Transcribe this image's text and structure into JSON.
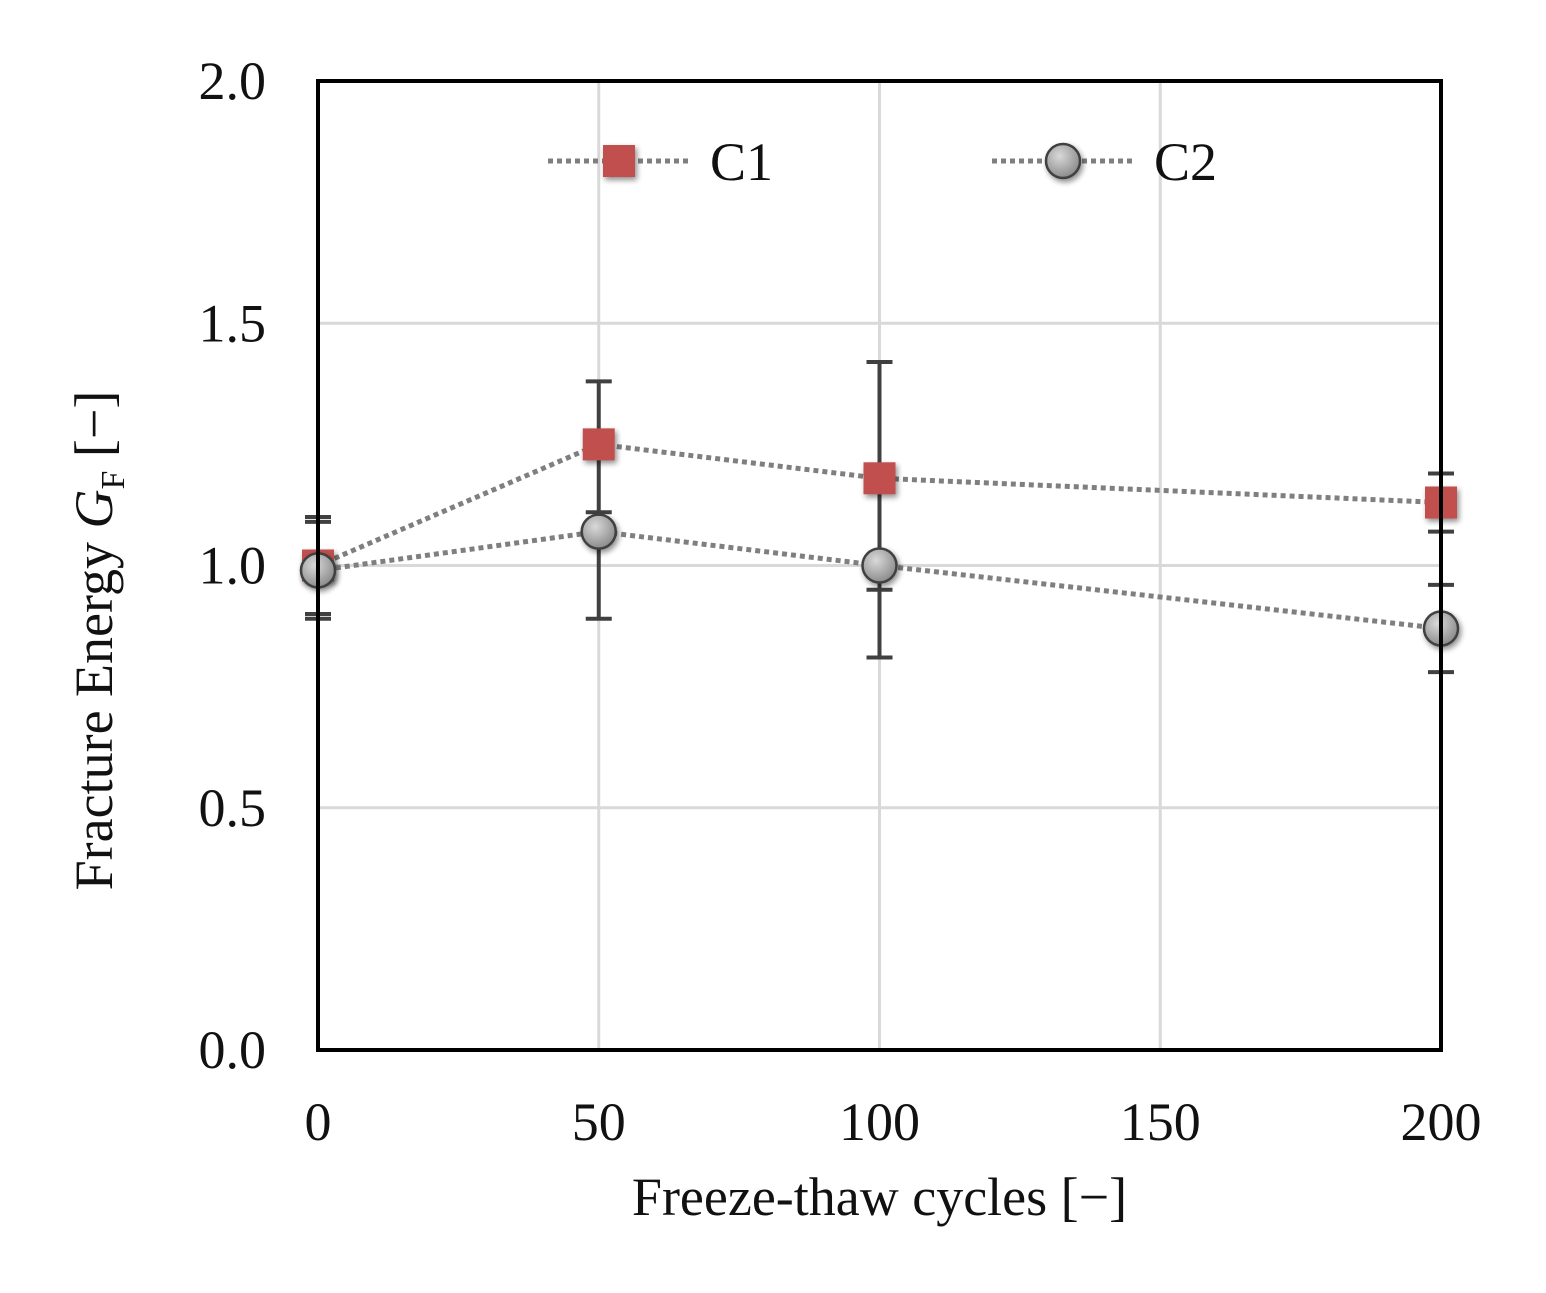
{
  "chart_data": {
    "type": "line",
    "title": "",
    "xlabel": "Freeze-thaw cycles [−]",
    "ylabel_prefix": "Fracture Energy ",
    "ylabel_symbol": "G",
    "ylabel_subscript": "F",
    "ylabel_suffix": " [−]",
    "xlim": [
      0,
      200
    ],
    "ylim": [
      0,
      2
    ],
    "x_ticks": [
      0,
      50,
      100,
      150,
      200
    ],
    "x_tick_labels": [
      "0",
      "50",
      "100",
      "150",
      "200"
    ],
    "y_ticks": [
      0,
      0.5,
      1,
      1.5,
      2
    ],
    "y_tick_labels": [
      "0.0",
      "0.5",
      "1.0",
      "1.5",
      "2.0"
    ],
    "grid": true,
    "legend_position": "top",
    "series": [
      {
        "name": "C1",
        "marker": "square",
        "color": "#c0504d",
        "x": [
          0,
          50,
          100,
          200
        ],
        "y": [
          1.0,
          1.25,
          1.18,
          1.13
        ],
        "err_low": [
          0.1,
          0.14,
          0.23,
          0.06
        ],
        "err_high": [
          0.1,
          0.13,
          0.24,
          0.06
        ]
      },
      {
        "name": "C2",
        "marker": "circle",
        "color": "#a6a6a6",
        "x": [
          0,
          50,
          100,
          200
        ],
        "y": [
          0.99,
          1.07,
          1.0,
          0.87
        ],
        "err_low": [
          0.1,
          0.18,
          0.19,
          0.09
        ],
        "err_high": [
          0.1,
          0.0,
          0.0,
          0.09
        ]
      }
    ]
  }
}
